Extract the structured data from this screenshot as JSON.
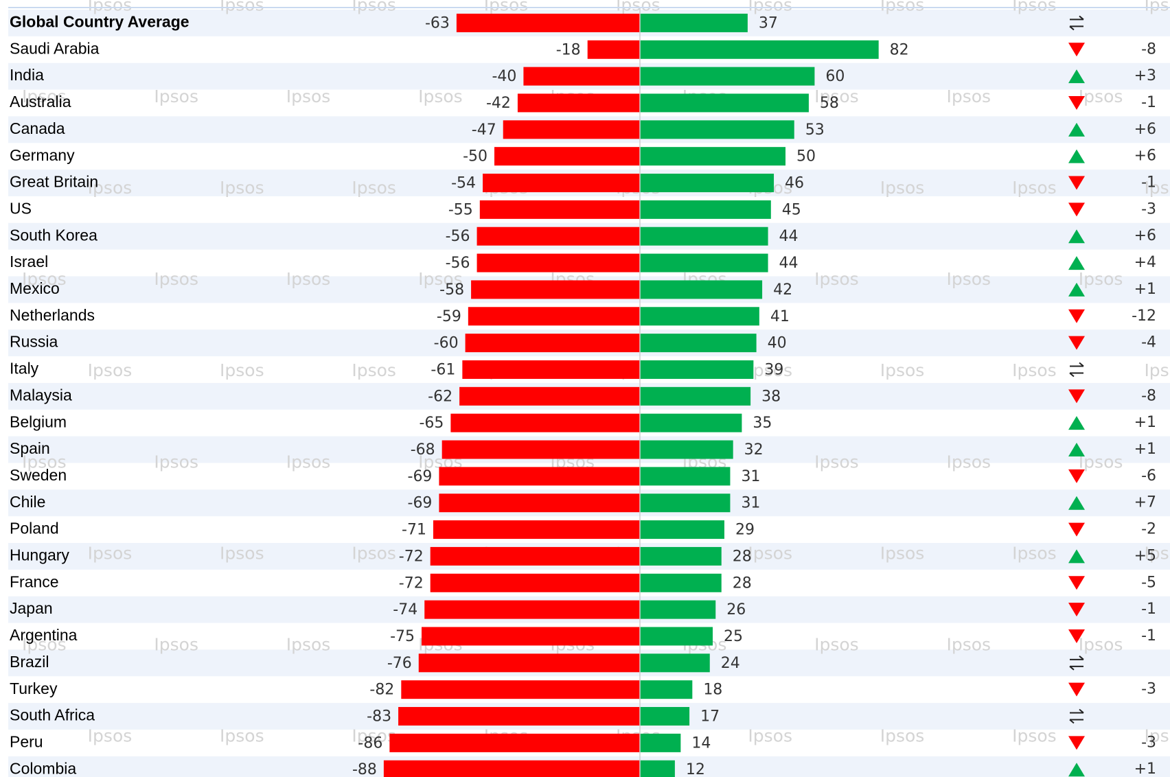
{
  "chart_data": {
    "type": "diverging-bar",
    "watermark": "Ipsos",
    "categories": [
      "Global Country Average",
      "Saudi Arabia",
      "India",
      "Australia",
      "Canada",
      "Germany",
      "Great Britain",
      "US",
      "South Korea",
      "Israel",
      "Mexico",
      "Netherlands",
      "Russia",
      "Italy",
      "Malaysia",
      "Belgium",
      "Spain",
      "Sweden",
      "Chile",
      "Poland",
      "Hungary",
      "France",
      "Japan",
      "Argentina",
      "Brazil",
      "Turkey",
      "South Africa",
      "Peru",
      "Colombia"
    ],
    "xlim": [
      -100,
      100
    ],
    "series": [
      {
        "color": "#ff0000",
        "values": [
          -63,
          -18,
          -40,
          -42,
          -47,
          -50,
          -54,
          -55,
          -56,
          -56,
          -58,
          -59,
          -60,
          -61,
          -62,
          -65,
          -68,
          -69,
          -69,
          -71,
          -72,
          -72,
          -74,
          -75,
          -76,
          -82,
          -83,
          -86,
          -88
        ]
      },
      {
        "color": "#00b050",
        "values": [
          37,
          82,
          60,
          58,
          53,
          50,
          46,
          45,
          44,
          44,
          42,
          41,
          40,
          39,
          38,
          35,
          32,
          31,
          31,
          29,
          28,
          28,
          26,
          25,
          24,
          18,
          17,
          14,
          12
        ]
      }
    ],
    "change": {
      "up_color": "#00b050",
      "down_color": "#ff0000",
      "values": [
        null,
        -8,
        3,
        -1,
        6,
        6,
        -1,
        -3,
        6,
        4,
        1,
        -12,
        -4,
        null,
        -8,
        1,
        1,
        -6,
        7,
        -2,
        5,
        -5,
        -1,
        -1,
        null,
        -3,
        null,
        -3,
        1
      ],
      "value_labels": [
        null,
        "-8",
        "+3",
        "-1",
        "+6",
        "+6",
        "-1",
        "-3",
        "+6",
        "+4",
        "+1",
        "-12",
        "-4",
        null,
        "-8",
        "+1",
        "+1",
        "-6",
        "+7",
        "-2",
        "+5",
        "-5",
        "-1",
        "-1",
        null,
        "-3",
        null,
        "-3",
        "+1"
      ]
    }
  }
}
